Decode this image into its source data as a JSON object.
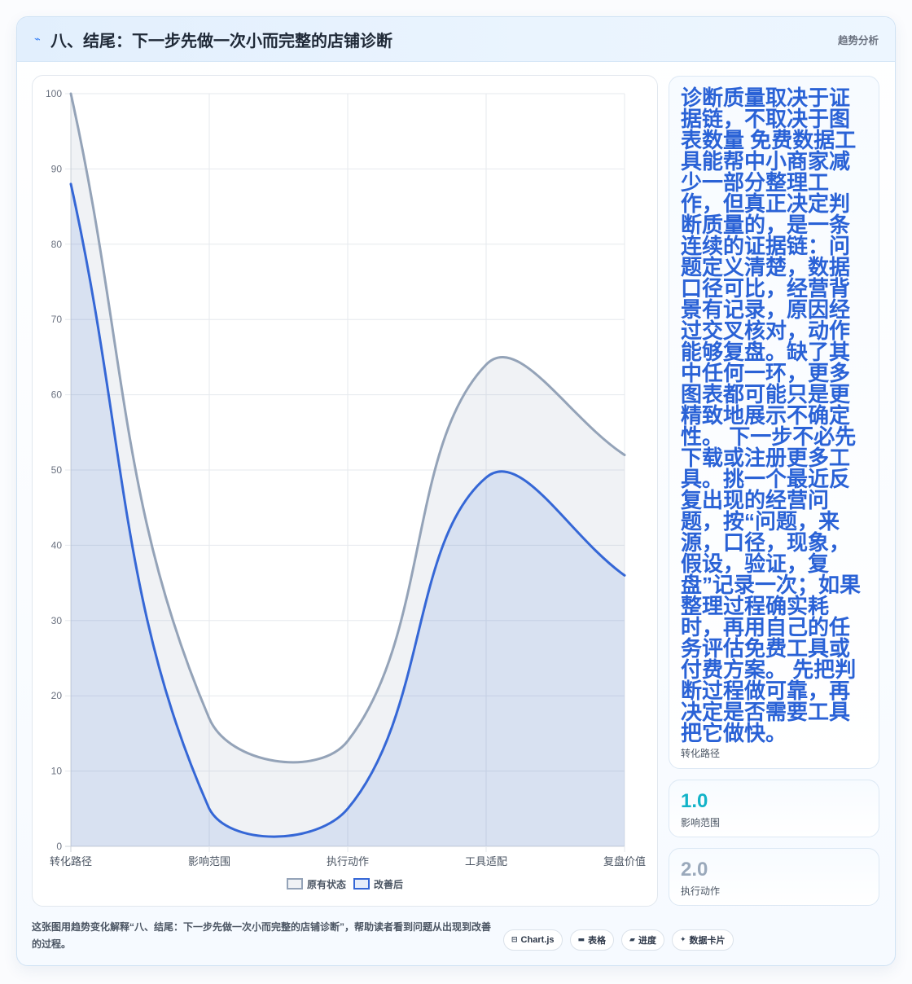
{
  "header": {
    "icon": "spark-icon",
    "icon_glyph": "⌁",
    "title": "八、结尾：下一步先做一次小而完整的店铺诊断",
    "tag": "趋势分析"
  },
  "chart_data": {
    "type": "line",
    "area_fill": true,
    "smooth": true,
    "categories": [
      "转化路径",
      "影响范围",
      "执行动作",
      "工具适配",
      "复盘价值"
    ],
    "series": [
      {
        "name": "原有状态",
        "values": [
          100,
          17,
          14,
          64,
          52
        ],
        "color": "#94a3b8",
        "fill": "#94a3b824"
      },
      {
        "name": "改善后",
        "values": [
          88,
          5,
          5,
          49,
          36
        ],
        "color": "#3567d6",
        "fill": "#3567d61f"
      }
    ],
    "ylim": [
      0,
      100
    ],
    "yticks": [
      0,
      10,
      20,
      30,
      40,
      50,
      60,
      70,
      80,
      90,
      100
    ],
    "grid": true,
    "legend": "bottom"
  },
  "side_cards": [
    {
      "value": "诊断质量取决于证据链，不取决于图表数量 免费数据工具能帮中小商家减少一部分整理工作，但真正决定判断质量的，是一条连续的证据链：问题定义清楚，数据口径可比，经营背景有记录，原因经过交叉核对，动作能够复盘。缺了其中任何一环，更多图表都可能只是更精致地展示不确定性。 下一步不必先下载或注册更多工具。挑一个最近反复出现的经营问题，按“问题，来源，口径，现象，假设，验证，复盘”记录一次；如果整理过程确实耗时，再用自己的任务评估免费工具或付费方案。 先把判断过程做可靠，再决定是否需要工具把它做快。",
      "label": "转化路径",
      "color": "#2a62d6"
    },
    {
      "value": "1.0",
      "label": "影响范围",
      "color": "#12b3c8"
    },
    {
      "value": "2.0",
      "label": "执行动作",
      "color": "#9aa9bb"
    }
  ],
  "footer": {
    "caption": "这张图用趋势变化解释“八、结尾：下一步先做一次小而完整的店铺诊断”，帮助读者看到问题从出现到改善的过程。",
    "chips": [
      {
        "icon": "chart-icon",
        "glyph": "⊟",
        "label": "Chart.js"
      },
      {
        "icon": "table-icon",
        "glyph": "▬",
        "label": "表格"
      },
      {
        "icon": "progress-icon",
        "glyph": "▰",
        "label": "进度"
      },
      {
        "icon": "card-icon",
        "glyph": "✦",
        "label": "数据卡片"
      }
    ]
  }
}
